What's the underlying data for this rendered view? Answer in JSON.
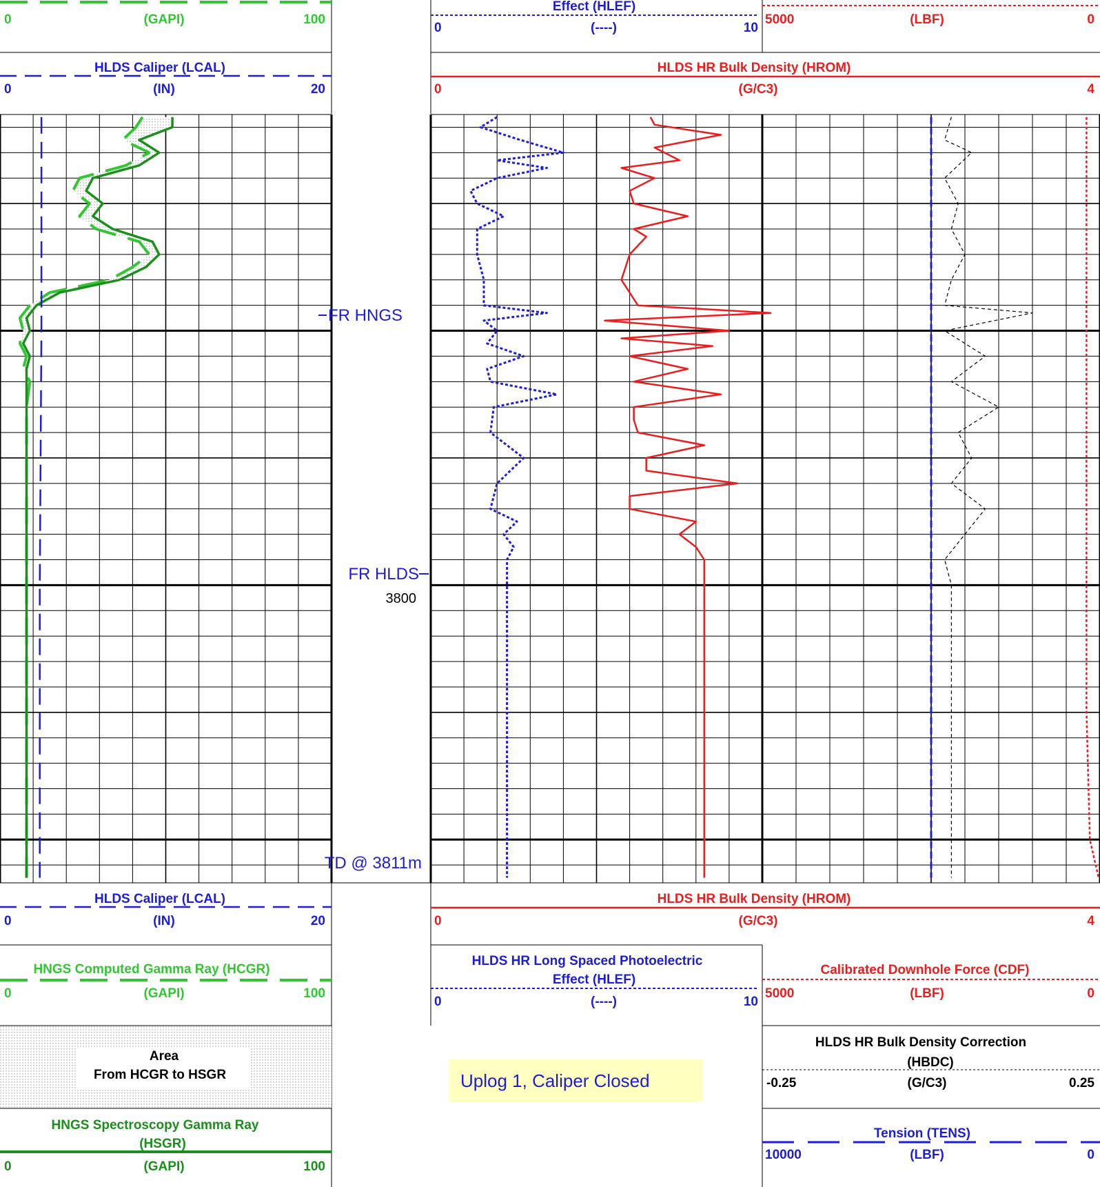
{
  "colors": {
    "green_light": "#33c633",
    "green_dark": "#1b8f1b",
    "blue": "#1c1cdc",
    "red": "#ee1c1c",
    "black": "#000000",
    "note_bg": "#ffffc0"
  },
  "headers_top": {
    "gr_partial": {
      "min": "0",
      "unit": "(GAPI)",
      "max": "100"
    },
    "lcal": {
      "title": "HLDS Caliper (LCAL)",
      "min": "0",
      "unit": "(IN)",
      "max": "20"
    },
    "hlef_partial": {
      "title": "Effect (HLEF)",
      "min": "0",
      "unit": "(----)",
      "max": "10"
    },
    "cdf_partial": {
      "min": "5000",
      "unit": "(LBF)",
      "max": "0"
    },
    "hrom": {
      "title": "HLDS HR Bulk Density (HROM)",
      "min": "0",
      "unit": "(G/C3)",
      "max": "4"
    }
  },
  "headers_bottom": {
    "lcal": {
      "title": "HLDS Caliper (LCAL)",
      "min": "0",
      "unit": "(IN)",
      "max": "20"
    },
    "hrom": {
      "title": "HLDS HR Bulk Density (HROM)",
      "min": "0",
      "unit": "(G/C3)",
      "max": "4"
    },
    "hcgr": {
      "title": "HNGS Computed Gamma Ray (HCGR)",
      "min": "0",
      "unit": "(GAPI)",
      "max": "100"
    },
    "hlef": {
      "title1": "HLDS HR Long Spaced Photoelectric",
      "title2": "Effect (HLEF)",
      "min": "0",
      "unit": "(----)",
      "max": "10"
    },
    "cdf": {
      "title": "Calibrated Downhole Force (CDF)",
      "min": "5000",
      "unit": "(LBF)",
      "max": "0"
    },
    "area": {
      "line1": "Area",
      "line2": "From HCGR to HSGR"
    },
    "hbdc": {
      "title1": "HLDS HR Bulk Density Correction",
      "title2": "(HBDC)",
      "min": "-0.25",
      "unit": "(G/C3)",
      "max": "0.25"
    },
    "hsgr": {
      "title1": "HNGS Spectroscopy Gamma Ray",
      "title2": "(HSGR)",
      "min": "0",
      "unit": "(GAPI)",
      "max": "100"
    },
    "tens": {
      "title": "Tension (TENS)",
      "min": "10000",
      "unit": "(LBF)",
      "max": "0"
    }
  },
  "annotations": {
    "fr_hngs": "FR HNGS",
    "fr_hlds": "FR HLDS",
    "depth_3800": "3800",
    "td": "TD @ 3811m",
    "note": "Uplog 1, Caliper Closed"
  },
  "chart_data": {
    "type": "line",
    "title": "",
    "depth_unit": "m",
    "depth_range": [
      3781.5,
      3811.7
    ],
    "depth_labels": [
      {
        "depth": 3800,
        "text": "3800"
      }
    ],
    "markers": [
      {
        "name": "FR HNGS",
        "depth": 3789.3
      },
      {
        "name": "FR HLDS",
        "depth": 3799.1
      },
      {
        "name": "TD @ 3811m",
        "depth": 3811
      }
    ],
    "tracks": [
      {
        "id": "track1",
        "curves": [
          {
            "name": "HCGR",
            "unit": "GAPI",
            "range": [
              0,
              100
            ],
            "depth": [
              3781.6,
              3782,
              3782.5,
              3783,
              3783.5,
              3784,
              3784.5,
              3785,
              3785.5,
              3786,
              3786.5,
              3787,
              3787.5,
              3788,
              3788.5,
              3789,
              3789.5,
              3790,
              3790.5,
              3791,
              3791.5,
              3792,
              3793,
              3795,
              3800,
              3805,
              3811.5
            ],
            "values": [
              43,
              41,
              37,
              45,
              38,
              24,
              22,
              27,
              24,
              29,
              42,
              45,
              40,
              33,
              15,
              9,
              6,
              7,
              6,
              8,
              7,
              9,
              8,
              8,
              8,
              8,
              8
            ]
          },
          {
            "name": "HSGR",
            "unit": "GAPI",
            "range": [
              0,
              100
            ],
            "depth": [
              3781.6,
              3782,
              3782.5,
              3783,
              3783.5,
              3784,
              3784.5,
              3785,
              3785.5,
              3786,
              3786.5,
              3787,
              3787.5,
              3788,
              3788.5,
              3789,
              3789.5,
              3790,
              3790.5,
              3791,
              3791.5,
              3792,
              3793,
              3795,
              3800,
              3805,
              3811.5
            ],
            "values": [
              52,
              52,
              42,
              48,
              42,
              28,
              26,
              31,
              28,
              34,
              46,
              48,
              44,
              36,
              18,
              11,
              8,
              9,
              7,
              9,
              8,
              8,
              8,
              8,
              8,
              8,
              8
            ]
          },
          {
            "name": "LCAL",
            "unit": "IN",
            "range": [
              0,
              20
            ],
            "depth": [
              3781.6,
              3790,
              3800,
              3811.5
            ],
            "values": [
              2.5,
              2.5,
              2.4,
              2.4
            ]
          }
        ]
      },
      {
        "id": "track2",
        "curves": [
          {
            "name": "HLEF",
            "unit": "----",
            "range": [
              0,
              10
            ],
            "depth": [
              3781.6,
              3782,
              3782.5,
              3783,
              3783.3,
              3783.6,
              3784,
              3784.5,
              3785,
              3785.5,
              3786,
              3787,
              3788,
              3789,
              3789.3,
              3789.6,
              3790,
              3790.5,
              3791,
              3791.5,
              3792,
              3792.5,
              3793,
              3794,
              3795,
              3796,
              3797,
              3797.5,
              3798,
              3798.5,
              3799,
              3800,
              3805,
              3811.5
            ],
            "values": [
              2.0,
              1.5,
              2.7,
              4.0,
              2.0,
              3.5,
              2.0,
              1.2,
              1.4,
              2.2,
              1.4,
              1.4,
              1.6,
              1.6,
              3.5,
              1.6,
              2.0,
              1.7,
              2.8,
              1.7,
              1.8,
              3.8,
              1.9,
              1.8,
              2.8,
              2.0,
              1.8,
              2.6,
              2.2,
              2.5,
              2.3,
              2.3,
              2.3,
              2.3
            ]
          },
          {
            "name": "HROM",
            "unit": "G/C3",
            "range": [
              0,
              4
            ],
            "depth": [
              3781.6,
              3781.9,
              3782.3,
              3782.8,
              3783.3,
              3783.6,
              3784,
              3784.5,
              3785,
              3785.5,
              3786,
              3786.3,
              3787,
              3788,
              3789,
              3789.3,
              3789.6,
              3790,
              3790.3,
              3790.6,
              3791,
              3791.5,
              3792,
              3792.5,
              3793,
              3793.5,
              3794,
              3794.5,
              3795,
              3795.5,
              3796,
              3796.5,
              3797,
              3797.5,
              3798,
              3798.5,
              3799,
              3800,
              3805,
              3811.5
            ],
            "values": [
              2.65,
              2.7,
              3.5,
              2.7,
              3.0,
              2.3,
              2.7,
              2.4,
              2.45,
              3.1,
              2.45,
              2.6,
              2.4,
              2.3,
              2.5,
              4.1,
              2.1,
              3.6,
              2.3,
              3.4,
              2.4,
              3.1,
              2.45,
              3.5,
              2.45,
              2.45,
              2.5,
              3.3,
              2.6,
              2.6,
              3.7,
              2.4,
              2.4,
              3.2,
              3.0,
              3.2,
              3.3,
              3.3,
              3.3,
              3.3
            ]
          }
        ]
      },
      {
        "id": "track3",
        "curves": [
          {
            "name": "HBDC",
            "unit": "G/C3",
            "range": [
              -0.25,
              0.25
            ],
            "depth": [
              3781.6,
              3782.5,
              3783,
              3784,
              3785,
              3786,
              3787,
              3788,
              3789,
              3789.3,
              3790,
              3791,
              3792,
              3793,
              3794,
              3795,
              3796,
              3797,
              3798,
              3799,
              3800,
              3811.5
            ],
            "values": [
              0.03,
              0.02,
              0.06,
              0.02,
              0.04,
              0.03,
              0.05,
              0.03,
              0.02,
              0.15,
              0.02,
              0.08,
              0.03,
              0.1,
              0.04,
              0.06,
              0.03,
              0.08,
              0.05,
              0.02,
              0.03,
              0.03
            ]
          },
          {
            "name": "TENS",
            "unit": "LBF",
            "range": [
              10000,
              0
            ],
            "depth": [
              3781.6,
              3811.5
            ],
            "values": [
              5000,
              5000
            ]
          },
          {
            "name": "CDF",
            "unit": "LBF",
            "range": [
              5000,
              0
            ],
            "depth": [
              3781.6,
              3805,
              3810,
              3811.5
            ],
            "values": [
              200,
              200,
              150,
              20
            ]
          }
        ]
      }
    ]
  }
}
